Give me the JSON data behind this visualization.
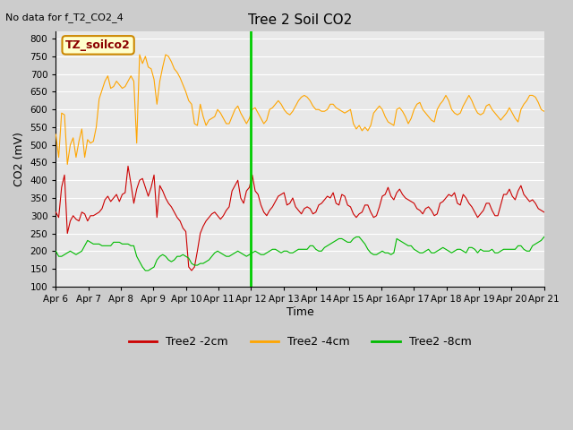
{
  "title": "Tree 2 Soil CO2",
  "no_data_text": "No data for f_T2_CO2_4",
  "ylabel": "CO2 (mV)",
  "xlabel": "Time",
  "ylim": [
    100,
    820
  ],
  "yticks": [
    100,
    150,
    200,
    250,
    300,
    350,
    400,
    450,
    500,
    550,
    600,
    650,
    700,
    750,
    800
  ],
  "legend_box_label": "TZ_soilco2",
  "fig_bg_color": "#cccccc",
  "plot_bg_color": "#e8e8e8",
  "grid_color": "#ffffff",
  "line_colors": {
    "2cm": "#cc0000",
    "4cm": "#ffa500",
    "8cm": "#00bb00"
  },
  "vline_color": "#00cc00",
  "legend_labels": [
    "Tree2 -2cm",
    "Tree2 -4cm",
    "Tree2 -8cm"
  ],
  "red_2cm": [
    310,
    295,
    380,
    415,
    250,
    285,
    300,
    290,
    285,
    310,
    305,
    285,
    300,
    300,
    305,
    310,
    320,
    345,
    355,
    340,
    350,
    360,
    340,
    360,
    365,
    440,
    390,
    335,
    375,
    400,
    405,
    380,
    355,
    380,
    415,
    295,
    385,
    370,
    350,
    335,
    325,
    310,
    295,
    285,
    265,
    255,
    155,
    145,
    155,
    200,
    250,
    270,
    285,
    295,
    305,
    310,
    300,
    290,
    300,
    315,
    325,
    370,
    385,
    400,
    350,
    335,
    370,
    380,
    415,
    370,
    360,
    330,
    310,
    300,
    315,
    325,
    340,
    355,
    360,
    365,
    330,
    335,
    350,
    325,
    315,
    305,
    320,
    325,
    320,
    305,
    310,
    330,
    335,
    345,
    355,
    350,
    365,
    335,
    330,
    360,
    355,
    330,
    325,
    305,
    295,
    305,
    310,
    330,
    330,
    310,
    295,
    300,
    325,
    355,
    360,
    380,
    355,
    345,
    365,
    375,
    360,
    350,
    345,
    340,
    335,
    320,
    315,
    305,
    320,
    325,
    315,
    300,
    305,
    335,
    340,
    350,
    360,
    355,
    365,
    335,
    330,
    360,
    350,
    335,
    325,
    310,
    295,
    305,
    315,
    335,
    335,
    315,
    300,
    300,
    330,
    360,
    360,
    375,
    355,
    345,
    370,
    385,
    360,
    350,
    340,
    345,
    335,
    320,
    315,
    310
  ],
  "orange_4cm": [
    530,
    465,
    590,
    585,
    445,
    500,
    520,
    465,
    510,
    545,
    465,
    515,
    505,
    510,
    550,
    630,
    655,
    680,
    695,
    660,
    665,
    680,
    670,
    660,
    665,
    680,
    695,
    680,
    505,
    755,
    730,
    750,
    720,
    715,
    685,
    615,
    680,
    720,
    755,
    750,
    735,
    715,
    705,
    690,
    670,
    650,
    625,
    615,
    560,
    555,
    615,
    580,
    555,
    570,
    575,
    580,
    600,
    590,
    575,
    560,
    560,
    580,
    600,
    610,
    590,
    575,
    560,
    575,
    600,
    605,
    590,
    575,
    560,
    570,
    600,
    605,
    615,
    625,
    615,
    600,
    590,
    585,
    595,
    610,
    625,
    635,
    640,
    635,
    625,
    610,
    600,
    600,
    595,
    595,
    600,
    615,
    615,
    605,
    600,
    595,
    590,
    595,
    600,
    560,
    545,
    555,
    540,
    550,
    540,
    555,
    590,
    600,
    610,
    600,
    580,
    565,
    560,
    555,
    600,
    605,
    595,
    580,
    560,
    575,
    600,
    615,
    620,
    600,
    590,
    580,
    570,
    565,
    600,
    615,
    625,
    640,
    625,
    600,
    590,
    585,
    590,
    610,
    625,
    640,
    625,
    605,
    590,
    585,
    590,
    610,
    615,
    600,
    590,
    580,
    570,
    580,
    590,
    605,
    590,
    575,
    565,
    600,
    615,
    625,
    640,
    640,
    635,
    620,
    600,
    595
  ],
  "green_8cm": [
    200,
    185,
    185,
    190,
    195,
    200,
    195,
    190,
    195,
    200,
    215,
    230,
    225,
    220,
    220,
    220,
    215,
    215,
    215,
    215,
    225,
    225,
    225,
    220,
    220,
    220,
    215,
    215,
    185,
    170,
    155,
    145,
    145,
    150,
    155,
    175,
    185,
    190,
    185,
    175,
    170,
    175,
    185,
    185,
    190,
    185,
    180,
    165,
    160,
    160,
    165,
    165,
    170,
    175,
    185,
    195,
    200,
    195,
    190,
    185,
    185,
    190,
    195,
    200,
    195,
    190,
    185,
    190,
    195,
    200,
    195,
    190,
    190,
    195,
    200,
    205,
    205,
    200,
    195,
    200,
    200,
    195,
    195,
    200,
    205,
    205,
    205,
    205,
    215,
    215,
    205,
    200,
    200,
    210,
    215,
    220,
    225,
    230,
    235,
    235,
    230,
    225,
    225,
    235,
    240,
    240,
    230,
    220,
    205,
    195,
    190,
    190,
    195,
    200,
    195,
    195,
    190,
    195,
    235,
    230,
    225,
    220,
    215,
    215,
    205,
    200,
    195,
    195,
    200,
    205,
    195,
    195,
    200,
    205,
    210,
    205,
    200,
    195,
    200,
    205,
    205,
    200,
    195,
    210,
    210,
    205,
    195,
    205,
    200,
    200,
    200,
    205,
    195,
    195,
    200,
    205,
    205,
    205,
    205,
    205,
    215,
    215,
    205,
    200,
    200,
    215,
    220,
    225,
    230,
    240
  ]
}
